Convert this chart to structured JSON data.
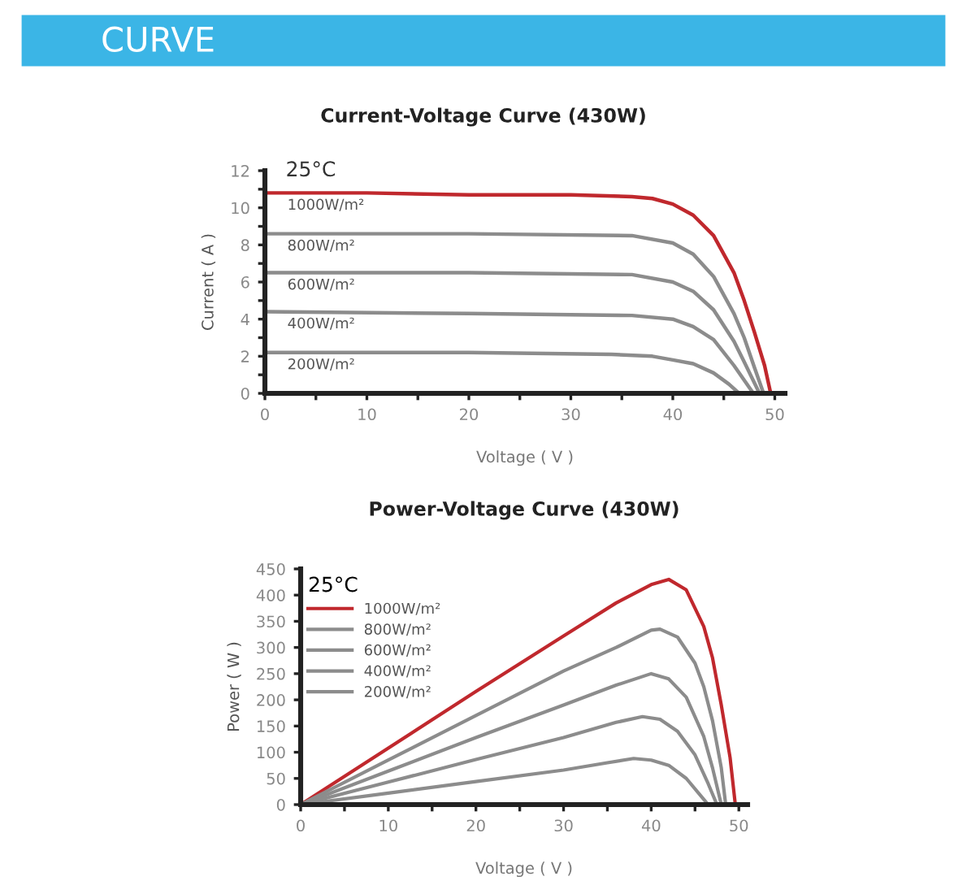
{
  "chart_data": [
    {
      "type": "line",
      "title": "Current-Voltage Curve (430W)",
      "xlabel": "Voltage ( V )",
      "ylabel": "Current ( A )",
      "annotations": [
        "CURVE",
        "25°C"
      ],
      "legend": false,
      "grid": false,
      "xlim": [
        0,
        51
      ],
      "ylim": [
        0,
        12
      ],
      "xticks": [
        0,
        {
          "value": 5,
          "label": null
        },
        10,
        {
          "value": 15,
          "label": null
        },
        20,
        {
          "value": 25,
          "label": null
        },
        30,
        {
          "value": 35,
          "label": null
        },
        40,
        {
          "value": 45,
          "label": null
        },
        50
      ],
      "yticks": [
        0,
        {
          "value": 1,
          "label": null
        },
        2,
        {
          "value": 3,
          "label": null
        },
        4,
        {
          "value": 5,
          "label": null
        },
        6,
        {
          "value": 7,
          "label": null
        },
        8,
        {
          "value": 9,
          "label": null
        },
        10,
        {
          "value": 11,
          "label": null
        },
        12
      ],
      "series": [
        {
          "name": "1000W/m²",
          "color": "#c0282d",
          "x": [
            0,
            10,
            20,
            30,
            36,
            38,
            40,
            42,
            44,
            46,
            47,
            48,
            49,
            49.6
          ],
          "values": [
            10.8,
            10.8,
            10.7,
            10.7,
            10.6,
            10.5,
            10.2,
            9.6,
            8.5,
            6.5,
            5.0,
            3.3,
            1.5,
            0
          ]
        },
        {
          "name": "800W/m²",
          "color": "#8c8c8c",
          "x": [
            0,
            20,
            36,
            40,
            42,
            44,
            46,
            47,
            48,
            48.9
          ],
          "values": [
            8.6,
            8.6,
            8.5,
            8.1,
            7.5,
            6.3,
            4.3,
            3.0,
            1.4,
            0
          ]
        },
        {
          "name": "600W/m²",
          "color": "#8c8c8c",
          "x": [
            0,
            20,
            36,
            40,
            42,
            44,
            46,
            47,
            48.5
          ],
          "values": [
            6.5,
            6.5,
            6.4,
            6.0,
            5.5,
            4.5,
            2.8,
            1.7,
            0
          ]
        },
        {
          "name": "400W/m²",
          "color": "#8c8c8c",
          "x": [
            0,
            20,
            36,
            40,
            42,
            44,
            46,
            47.9
          ],
          "values": [
            4.4,
            4.3,
            4.2,
            4.0,
            3.6,
            2.9,
            1.5,
            0
          ]
        },
        {
          "name": "200W/m²",
          "color": "#8c8c8c",
          "x": [
            0,
            20,
            34,
            38,
            40,
            42,
            44,
            45.5,
            46.5
          ],
          "values": [
            2.2,
            2.2,
            2.1,
            2.0,
            1.8,
            1.6,
            1.1,
            0.5,
            0
          ]
        }
      ]
    },
    {
      "type": "line",
      "title": "Power-Voltage Curve (430W)",
      "xlabel": "Voltage ( V )",
      "ylabel": "Power ( W )",
      "legend_title": "25°C",
      "legend": "top left",
      "grid": false,
      "xlim": [
        0,
        51
      ],
      "ylim": [
        0,
        450
      ],
      "xticks": [
        0,
        {
          "value": 5,
          "label": null
        },
        10,
        {
          "value": 15,
          "label": null
        },
        20,
        {
          "value": 25,
          "label": null
        },
        30,
        {
          "value": 35,
          "label": null
        },
        40,
        {
          "value": 45,
          "label": null
        },
        50
      ],
      "yticks": [
        0,
        50,
        100,
        150,
        200,
        250,
        300,
        350,
        400,
        450
      ],
      "series": [
        {
          "name": "1000W/m²",
          "color": "#c0282d",
          "x": [
            0,
            10,
            20,
            30,
            36,
            40,
            42,
            44,
            46,
            47,
            48,
            49,
            49.6
          ],
          "values": [
            0,
            108,
            216,
            322,
            385,
            420,
            430,
            410,
            340,
            280,
            190,
            90,
            0
          ]
        },
        {
          "name": "800W/m²",
          "color": "#8c8c8c",
          "x": [
            0,
            10,
            20,
            30,
            36,
            40,
            41,
            43,
            45,
            46,
            47,
            48,
            48.5
          ],
          "values": [
            0,
            85,
            170,
            255,
            300,
            333,
            335,
            320,
            270,
            225,
            160,
            70,
            0
          ]
        },
        {
          "name": "600W/m²",
          "color": "#8c8c8c",
          "x": [
            0,
            10,
            20,
            30,
            36,
            40,
            42,
            44,
            46,
            47,
            48
          ],
          "values": [
            0,
            64,
            128,
            190,
            228,
            250,
            240,
            205,
            130,
            70,
            0
          ]
        },
        {
          "name": "400W/m²",
          "color": "#8c8c8c",
          "x": [
            0,
            10,
            20,
            30,
            36,
            39,
            41,
            43,
            45,
            46.5,
            47.5
          ],
          "values": [
            0,
            43,
            86,
            128,
            157,
            168,
            163,
            140,
            95,
            40,
            0
          ]
        },
        {
          "name": "200W/m²",
          "color": "#8c8c8c",
          "x": [
            0,
            10,
            20,
            30,
            35,
            38,
            40,
            42,
            44,
            45.5,
            46.5
          ],
          "values": [
            0,
            22,
            44,
            66,
            80,
            88,
            85,
            75,
            50,
            20,
            0
          ]
        }
      ]
    }
  ]
}
